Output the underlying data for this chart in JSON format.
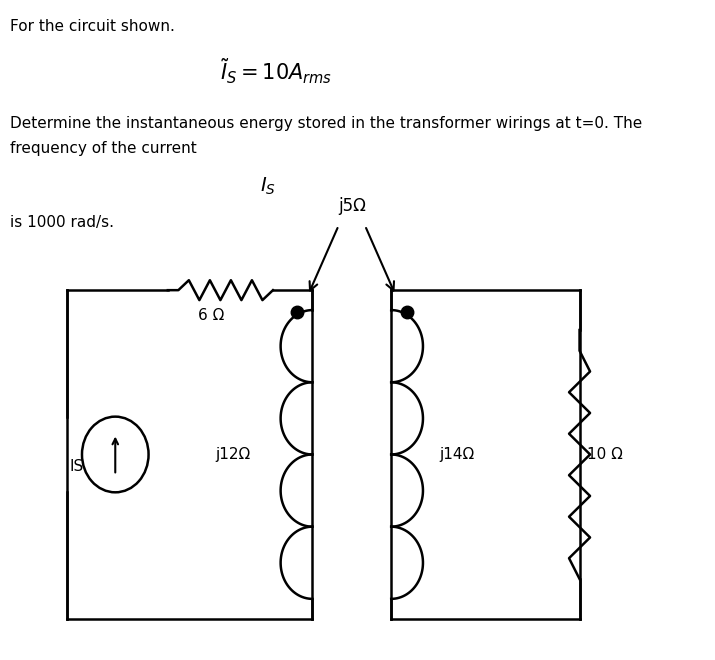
{
  "bg_color": "#ffffff",
  "text_line1": "For the circuit shown.",
  "text_formula": "$\\tilde{I}_S = 10A_{rms}$",
  "text_line3": "Determine the instantaneous energy stored in the transformer wirings at t=0. The",
  "text_line4": "frequency of the current",
  "text_Is": "$I_S$",
  "text_line6": "is 1000 rad/s.",
  "label_IS": "IS",
  "label_6ohm": "6 Ω",
  "label_j12ohm": "j12Ω",
  "label_j14ohm": "j14Ω",
  "label_10ohm": "10 Ω",
  "label_j5ohm": "j5Ω"
}
